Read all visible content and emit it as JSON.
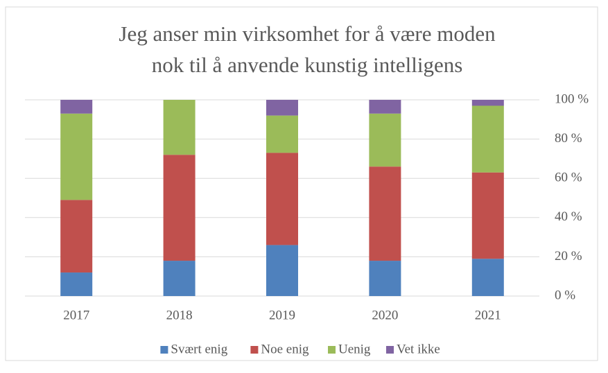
{
  "chart_data": {
    "type": "stacked_bar",
    "title": [
      "Jeg anser min virksomhet for å være moden",
      "nok til å anvende kunstig intelligens"
    ],
    "categories": [
      "2017",
      "2018",
      "2019",
      "2020",
      "2021"
    ],
    "series": [
      {
        "name": "Svært enig",
        "color": "#4f81bd",
        "values": [
          12,
          18,
          26,
          18,
          19
        ]
      },
      {
        "name": "Noe enig",
        "color": "#c0504d",
        "values": [
          37,
          54,
          47,
          48,
          44
        ]
      },
      {
        "name": "Uenig",
        "color": "#9bbb59",
        "values": [
          44,
          28,
          19,
          27,
          34
        ]
      },
      {
        "name": "Vet ikke",
        "color": "#8064a2",
        "values": [
          7,
          0,
          8,
          7,
          3
        ]
      }
    ],
    "ylim": [
      0,
      100
    ],
    "yticks": [
      {
        "value": 0,
        "label": "0 %"
      },
      {
        "value": 20,
        "label": "20 %"
      },
      {
        "value": 40,
        "label": "40 %"
      },
      {
        "value": 60,
        "label": "60 %"
      },
      {
        "value": 80,
        "label": "80 %"
      },
      {
        "value": 100,
        "label": "100 %"
      }
    ],
    "grid": true,
    "legend": "bottom"
  }
}
